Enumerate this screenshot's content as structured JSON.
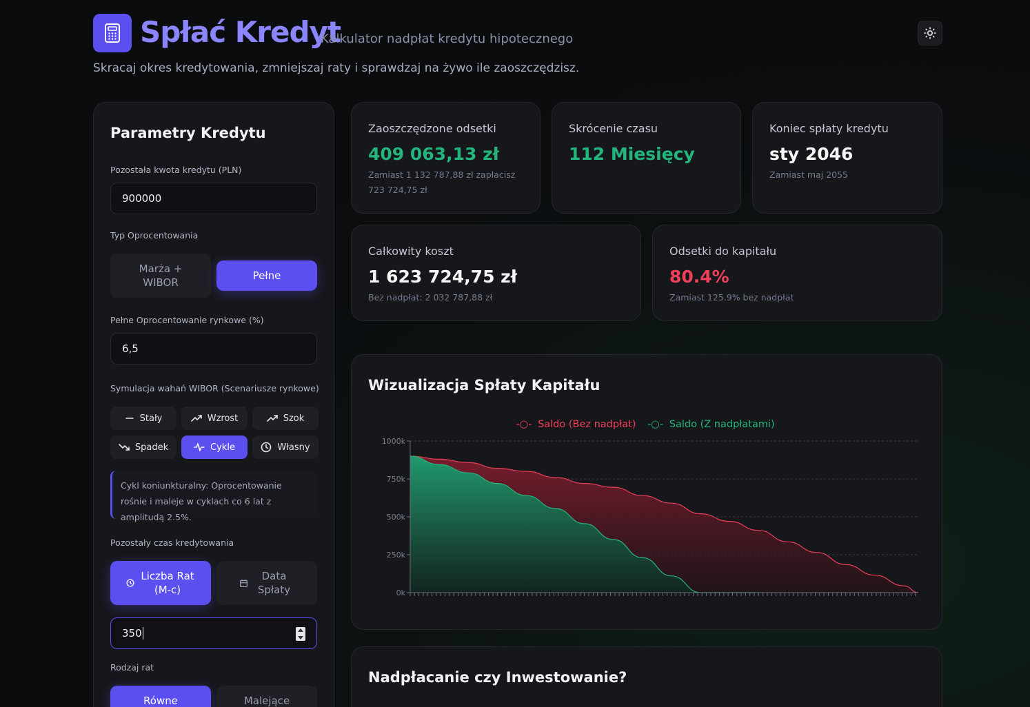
{
  "header": {
    "title": "Spłać Kredyt",
    "subtitle": "Kalkulator nadpłat kredytu hipotecznego",
    "tagline": "Skracaj okres kredytowania, zmniejszaj raty i sprawdzaj na żywo ile zaoszczędzisz.",
    "logo_icon": "calculator-icon",
    "theme_icon": "sun-icon"
  },
  "params": {
    "title": "Parametry Kredytu",
    "amount_label": "Pozostała kwota kredytu (PLN)",
    "amount_value": "900000",
    "rate_type_label": "Typ Oprocentowania",
    "rate_type_options": [
      "Marża + WIBOR",
      "Pełne"
    ],
    "rate_type_selected": "Pełne",
    "rate_label": "Pełne Oprocentowanie rynkowe (%)",
    "rate_value": "6,5",
    "wibor_label": "Symulacja wahań WIBOR (Scenariusze rynkowe)",
    "wibor_options": [
      {
        "label": "Stały",
        "icon": "minus-icon"
      },
      {
        "label": "Wzrost",
        "icon": "trending-up-icon"
      },
      {
        "label": "Szok",
        "icon": "trending-up-icon"
      },
      {
        "label": "Spadek",
        "icon": "trending-down-icon"
      },
      {
        "label": "Cykle",
        "icon": "activity-icon"
      },
      {
        "label": "Własny",
        "icon": "clock-icon"
      }
    ],
    "wibor_selected": "Cykle",
    "wibor_note": "Cykl koniunkturalny: Oprocentowanie rośnie i maleje w cyklach co 6 lat z amplitudą 2.5%.",
    "term_label": "Pozostały czas kredytowania",
    "term_options": [
      "Liczba Rat (M-c)",
      "Data Spłaty"
    ],
    "term_selected": "Liczba Rat (M-c)",
    "term_value": "350",
    "installment_label": "Rodzaj rat",
    "installment_options": [
      "Równe",
      "Malejące"
    ],
    "installment_selected": "Równe"
  },
  "stats": {
    "saved_interest": {
      "label": "Zaoszczędzone odsetki",
      "value": "409 063,13 zł",
      "sub": "Zamiast 1 132 787,88 zł zapłacisz 723 724,75 zł"
    },
    "time_saved": {
      "label": "Skrócenie czasu",
      "value": "112 Miesięcy"
    },
    "end_date": {
      "label": "Koniec spłaty kredytu",
      "value": "sty 2046",
      "sub": "Zamiast maj 2055"
    },
    "total_cost": {
      "label": "Całkowity koszt",
      "value": "1 623 724,75 zł",
      "sub": "Bez nadpłat: 2 032 787,88 zł"
    },
    "interest_ratio": {
      "label": "Odsetki do kapitału",
      "value": "80.4%",
      "sub": "Zamiast 125.9% bez nadpłat"
    }
  },
  "chart_section": {
    "title": "Wizualizacja Spłaty Kapitału"
  },
  "chart_data": {
    "type": "area",
    "title": "",
    "xlabel": "",
    "ylabel": "",
    "ylim": [
      0,
      1000000
    ],
    "y_ticks": [
      "0k",
      "250k",
      "500k",
      "750k",
      "1000k"
    ],
    "x_months": 350,
    "legend_position": "top-center",
    "series": [
      {
        "name": "Saldo (Bez nadpłat)",
        "color": "#e8405a",
        "x": [
          0,
          20,
          40,
          60,
          80,
          100,
          120,
          140,
          160,
          180,
          200,
          220,
          240,
          260,
          280,
          300,
          320,
          340,
          350
        ],
        "values": [
          900000,
          880000,
          858000,
          820000,
          800000,
          760000,
          720000,
          695000,
          640000,
          590000,
          520000,
          470000,
          410000,
          335000,
          265000,
          185000,
          115000,
          45000,
          0
        ]
      },
      {
        "name": "Saldo (Z nadpłatami)",
        "color": "#24b57c",
        "x": [
          0,
          20,
          40,
          60,
          80,
          100,
          120,
          140,
          160,
          180,
          200,
          220,
          238
        ],
        "values": [
          900000,
          845000,
          790000,
          720000,
          640000,
          555000,
          455000,
          350000,
          230000,
          110000,
          0,
          0,
          0
        ]
      }
    ]
  },
  "invest_section": {
    "title": "Nadpłacanie czy Inwestowanie?"
  },
  "colors": {
    "accent": "#5b4ff0",
    "positive": "#24b57c",
    "negative": "#f0405a",
    "background": "#0b0d0f",
    "card": "#16171b"
  }
}
